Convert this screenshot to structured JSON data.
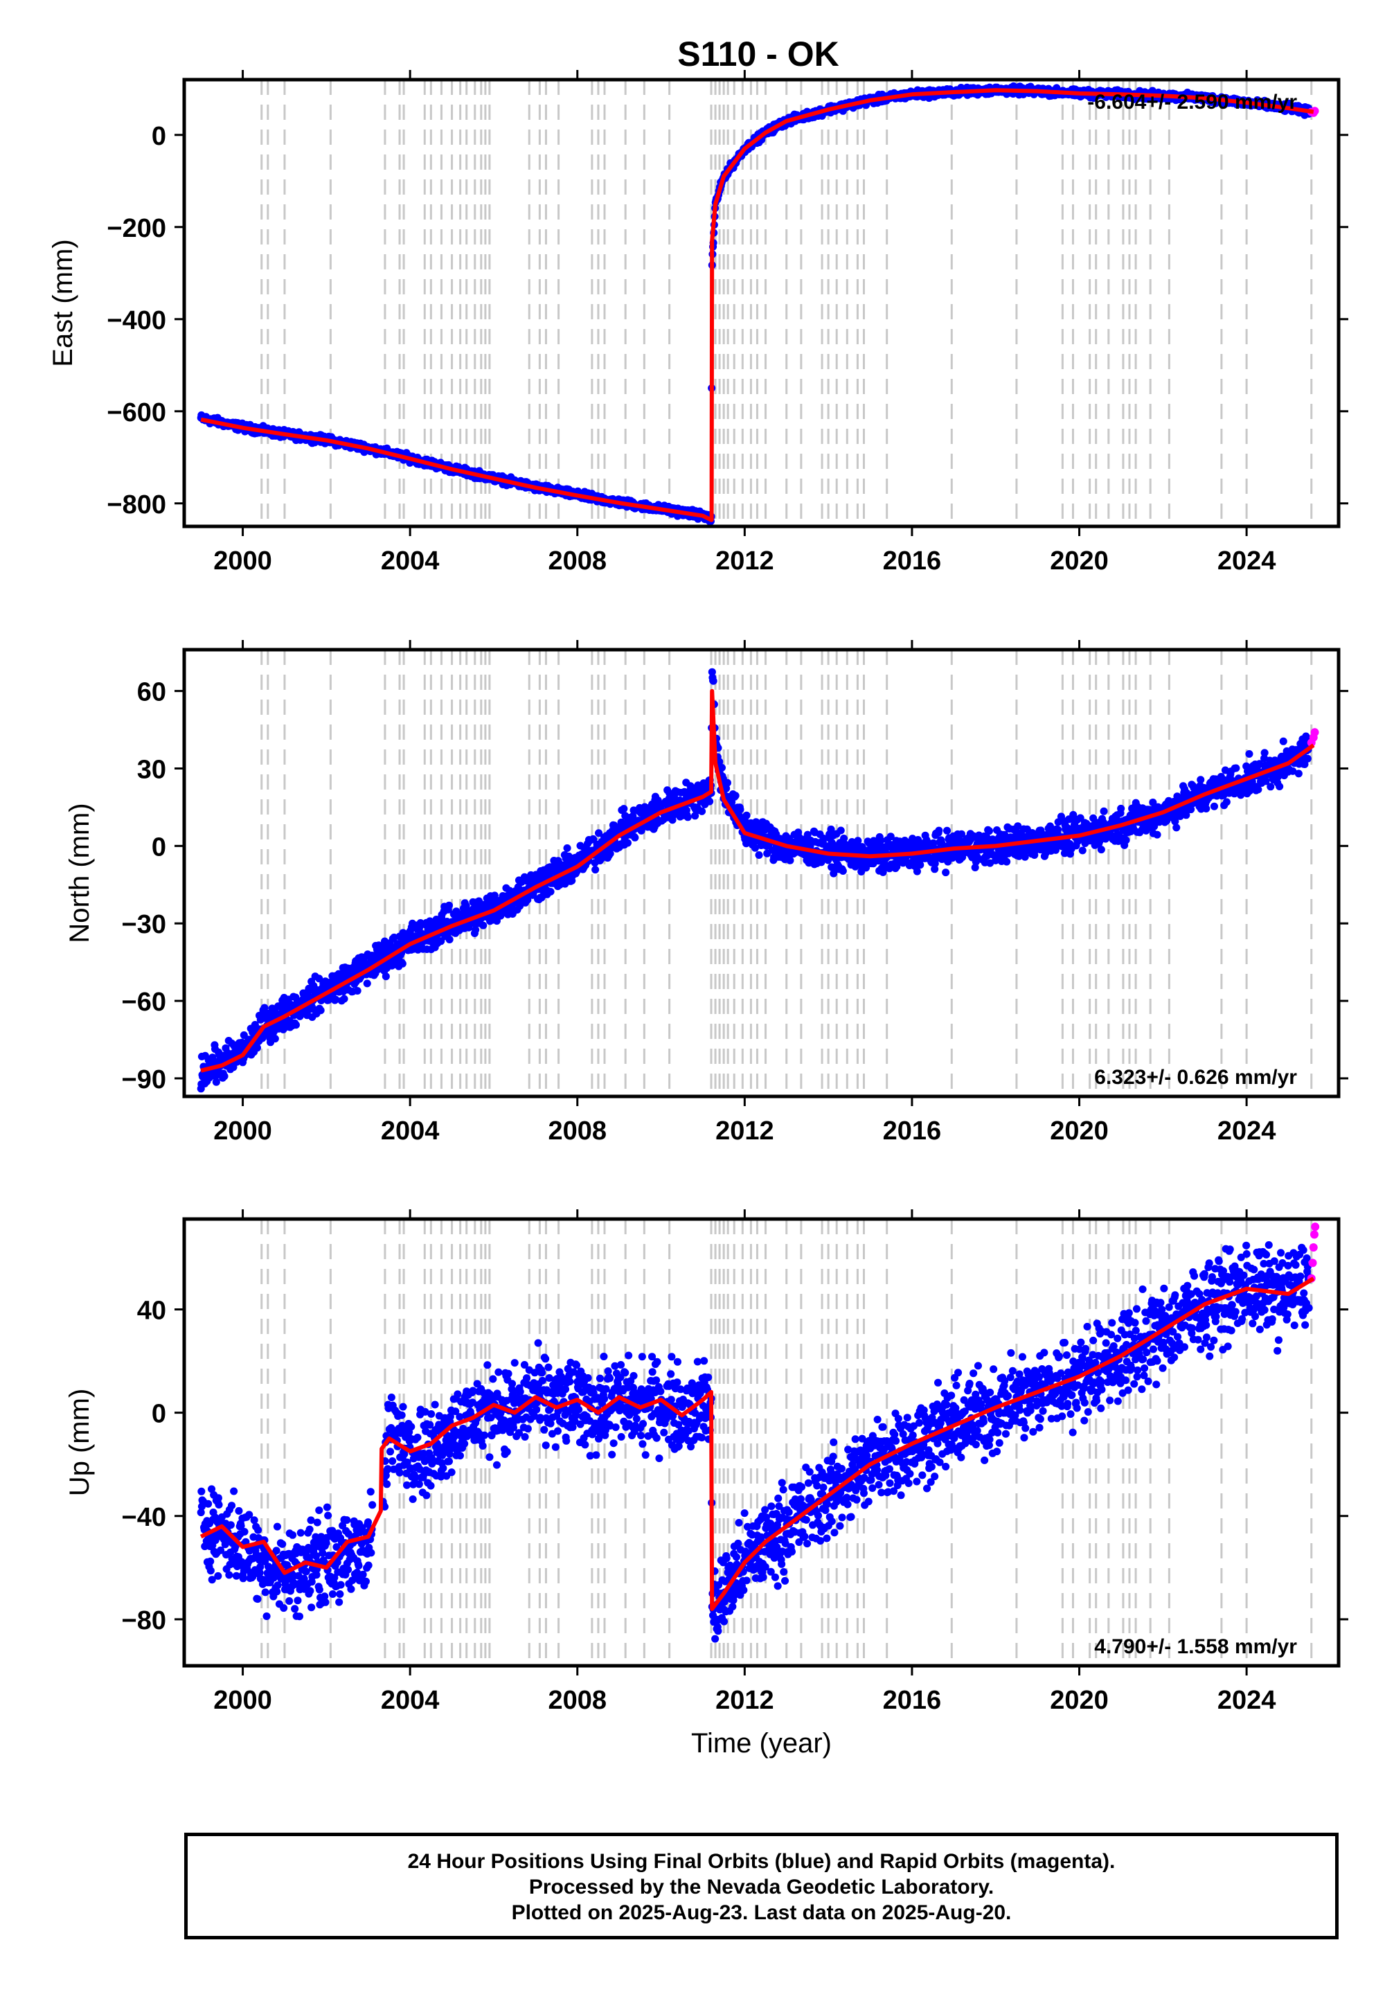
{
  "chart_data": [
    {
      "type": "scatter",
      "title": "S110 - OK",
      "xlabel": "",
      "ylabel": "East (mm)",
      "xlim": [
        1998.6,
        2026.2
      ],
      "ylim": [
        -850,
        120
      ],
      "xticks": [
        2000,
        2004,
        2008,
        2012,
        2016,
        2020,
        2024
      ],
      "yticks": [
        -800,
        -600,
        -400,
        -200,
        0
      ],
      "rate_text": "-6.604+/- 2.590 mm/yr",
      "series": [
        {
          "name": "Final Orbits (blue)",
          "color": "#0000ff",
          "x": [
            1999.0,
            2000.0,
            2001.0,
            2002.0,
            2003.0,
            2004.0,
            2005.0,
            2006.0,
            2007.0,
            2008.0,
            2009.0,
            2010.0,
            2011.0,
            2011.2,
            2011.22,
            2011.3,
            2011.5,
            2012.0,
            2012.5,
            2013.0,
            2014.0,
            2015.0,
            2016.0,
            2017.0,
            2018.0,
            2019.0,
            2020.0,
            2021.0,
            2022.0,
            2023.0,
            2024.0,
            2025.0,
            2025.5
          ],
          "y": [
            -615,
            -635,
            -650,
            -662,
            -680,
            -702,
            -725,
            -745,
            -765,
            -782,
            -798,
            -812,
            -826,
            -838,
            -280,
            -150,
            -90,
            -30,
            5,
            30,
            55,
            75,
            88,
            93,
            97,
            95,
            90,
            88,
            85,
            80,
            70,
            58,
            50
          ]
        },
        {
          "name": "Rapid Orbits (magenta)",
          "color": "#ff00ff",
          "x": [
            2025.55,
            2025.6,
            2025.63
          ],
          "y": [
            50,
            48,
            52
          ]
        },
        {
          "name": "Model",
          "color": "#ff0000",
          "x": [
            1999.0,
            2000.0,
            2001.0,
            2002.0,
            2003.0,
            2004.0,
            2005.0,
            2006.0,
            2007.0,
            2008.0,
            2009.0,
            2010.0,
            2011.0,
            2011.2,
            2011.21,
            2011.22,
            2011.3,
            2011.5,
            2012.0,
            2012.5,
            2013.0,
            2014.0,
            2015.0,
            2016.0,
            2017.0,
            2018.0,
            2019.0,
            2020.0,
            2021.0,
            2022.0,
            2023.0,
            2024.0,
            2025.0,
            2025.6
          ],
          "y": [
            -618,
            -636,
            -650,
            -663,
            -681,
            -703,
            -726,
            -746,
            -766,
            -783,
            -799,
            -813,
            -827,
            -836,
            -836,
            -230,
            -150,
            -90,
            -30,
            5,
            30,
            55,
            75,
            88,
            93,
            97,
            95,
            90,
            88,
            85,
            80,
            70,
            58,
            50
          ]
        }
      ]
    },
    {
      "type": "scatter",
      "title": "",
      "xlabel": "",
      "ylabel": "North (mm)",
      "xlim": [
        1998.6,
        2026.2
      ],
      "ylim": [
        -97,
        76
      ],
      "xticks": [
        2000,
        2004,
        2008,
        2012,
        2016,
        2020,
        2024
      ],
      "yticks": [
        -90,
        -60,
        -30,
        0,
        30,
        60
      ],
      "rate_text": "6.323+/- 0.626 mm/yr",
      "series": [
        {
          "name": "Final Orbits (blue)",
          "color": "#0000ff",
          "x": [
            1999.0,
            1999.5,
            2000.0,
            2000.5,
            2001.0,
            2002.0,
            2003.0,
            2004.0,
            2005.0,
            2006.0,
            2007.0,
            2008.0,
            2009.0,
            2010.0,
            2011.0,
            2011.2,
            2011.22,
            2011.3,
            2011.5,
            2012.0,
            2013.0,
            2014.0,
            2015.0,
            2016.0,
            2017.0,
            2018.0,
            2019.0,
            2020.0,
            2021.0,
            2022.0,
            2023.0,
            2024.0,
            2025.0,
            2025.5
          ],
          "y": [
            -87,
            -84,
            -80,
            -70,
            -65,
            -56,
            -47,
            -37,
            -30,
            -24,
            -15,
            -7,
            5,
            14,
            20,
            22,
            72,
            40,
            22,
            6,
            0,
            -2,
            -4,
            -3,
            -1,
            0,
            2,
            4,
            8,
            13,
            20,
            26,
            32,
            38
          ]
        },
        {
          "name": "Rapid Orbits (magenta)",
          "color": "#ff00ff",
          "x": [
            2025.55,
            2025.6,
            2025.63
          ],
          "y": [
            40,
            42,
            44
          ]
        },
        {
          "name": "Model",
          "color": "#ff0000",
          "x": [
            1999.0,
            1999.5,
            2000.0,
            2000.5,
            2001.0,
            2002.0,
            2003.0,
            2004.0,
            2005.0,
            2006.0,
            2007.0,
            2008.0,
            2009.0,
            2010.0,
            2011.0,
            2011.2,
            2011.22,
            2011.3,
            2011.5,
            2012.0,
            2013.0,
            2014.0,
            2015.0,
            2016.0,
            2017.0,
            2018.0,
            2019.0,
            2020.0,
            2021.0,
            2022.0,
            2023.0,
            2024.0,
            2025.0,
            2025.6
          ],
          "y": [
            -87,
            -85,
            -81,
            -70,
            -66,
            -57,
            -48,
            -38,
            -31,
            -25,
            -16,
            -8,
            4,
            13,
            19,
            21,
            60,
            32,
            18,
            5,
            0,
            -3,
            -4,
            -3,
            -1,
            0,
            2,
            4,
            8,
            13,
            20,
            26,
            32,
            39
          ]
        }
      ]
    },
    {
      "type": "scatter",
      "title": "",
      "xlabel": "Time (year)",
      "ylabel": "Up (mm)",
      "xlim": [
        1998.6,
        2026.2
      ],
      "ylim": [
        -98,
        75
      ],
      "xticks": [
        2000,
        2004,
        2008,
        2012,
        2016,
        2020,
        2024
      ],
      "yticks": [
        -80,
        -40,
        0,
        40
      ],
      "rate_text": "4.790+/- 1.558 mm/yr",
      "series": [
        {
          "name": "Final Orbits (blue)",
          "color": "#0000ff",
          "x": [
            1999.0,
            1999.5,
            2000.0,
            2000.5,
            2001.0,
            2001.5,
            2002.0,
            2002.5,
            2003.0,
            2003.3,
            2003.5,
            2004.0,
            2004.5,
            2005.0,
            2005.5,
            2006.0,
            2006.5,
            2007.0,
            2007.5,
            2008.0,
            2008.5,
            2009.0,
            2009.5,
            2010.0,
            2010.5,
            2011.0,
            2011.2,
            2011.22,
            2011.5,
            2012.0,
            2012.5,
            2013.0,
            2013.5,
            2014.0,
            2015.0,
            2016.0,
            2017.0,
            2018.0,
            2019.0,
            2020.0,
            2021.0,
            2022.0,
            2023.0,
            2024.0,
            2025.0,
            2025.5
          ],
          "y": [
            -42,
            -46,
            -52,
            -58,
            -62,
            -60,
            -55,
            -58,
            -50,
            -40,
            -8,
            -12,
            -16,
            -6,
            -2,
            2,
            0,
            6,
            3,
            4,
            1,
            5,
            2,
            4,
            0,
            3,
            4,
            -78,
            -70,
            -58,
            -50,
            -44,
            -38,
            -32,
            -20,
            -12,
            -5,
            2,
            8,
            14,
            22,
            32,
            42,
            48,
            46,
            50
          ]
        },
        {
          "name": "Rapid Orbits (magenta)",
          "color": "#ff00ff",
          "x": [
            2025.55,
            2025.58,
            2025.6,
            2025.62,
            2025.64
          ],
          "y": [
            52,
            58,
            64,
            69,
            72
          ]
        },
        {
          "name": "Model",
          "color": "#ff0000",
          "x": [
            1999.0,
            1999.5,
            2000.0,
            2000.5,
            2001.0,
            2001.5,
            2002.0,
            2002.5,
            2003.0,
            2003.3,
            2003.32,
            2003.5,
            2004.0,
            2004.5,
            2005.0,
            2005.5,
            2006.0,
            2006.5,
            2007.0,
            2007.5,
            2008.0,
            2008.5,
            2009.0,
            2009.5,
            2010.0,
            2010.5,
            2011.0,
            2011.2,
            2011.22,
            2011.5,
            2012.0,
            2012.5,
            2013.0,
            2013.5,
            2014.0,
            2015.0,
            2016.0,
            2017.0,
            2018.0,
            2019.0,
            2020.0,
            2021.0,
            2022.0,
            2023.0,
            2024.0,
            2025.0,
            2025.6
          ],
          "y": [
            -48,
            -44,
            -52,
            -50,
            -62,
            -58,
            -60,
            -50,
            -48,
            -38,
            -14,
            -10,
            -15,
            -12,
            -5,
            -2,
            3,
            0,
            6,
            2,
            5,
            0,
            6,
            2,
            5,
            -1,
            5,
            8,
            -76,
            -70,
            -58,
            -50,
            -44,
            -38,
            -32,
            -20,
            -12,
            -5,
            2,
            8,
            14,
            22,
            32,
            42,
            48,
            46,
            52
          ]
        }
      ]
    }
  ],
  "vertical_markers": [
    2000.45,
    2000.6,
    2001.0,
    2002.1,
    2003.4,
    2003.75,
    2003.85,
    2004.35,
    2004.5,
    2004.75,
    2005.0,
    2005.2,
    2005.35,
    2005.55,
    2005.7,
    2005.8,
    2005.9,
    2006.85,
    2007.1,
    2007.25,
    2007.55,
    2008.35,
    2008.5,
    2008.65,
    2009.15,
    2009.6,
    2010.2,
    2011.2,
    2011.3,
    2011.4,
    2011.5,
    2011.6,
    2011.75,
    2011.95,
    2012.15,
    2012.3,
    2012.5,
    2013.0,
    2013.35,
    2013.85,
    2014.0,
    2014.2,
    2014.45,
    2014.7,
    2014.85,
    2015.4,
    2016.95,
    2018.5,
    2019.6,
    2019.85,
    2020.25,
    2020.4,
    2020.7,
    2021.05,
    2021.2,
    2021.35,
    2021.7,
    2022.15,
    2023.4,
    2024.0,
    2025.55
  ],
  "colors": {
    "final": "#0000ff",
    "rapid": "#ff00ff",
    "model": "#ff0000",
    "marker": "#c8c8c8"
  },
  "caption": {
    "line1": "24 Hour Positions Using Final Orbits (blue) and Rapid Orbits (magenta).",
    "line2": "Processed by the Nevada Geodetic Laboratory.",
    "line3": "Plotted on 2025-Aug-23. Last data on 2025-Aug-20."
  }
}
